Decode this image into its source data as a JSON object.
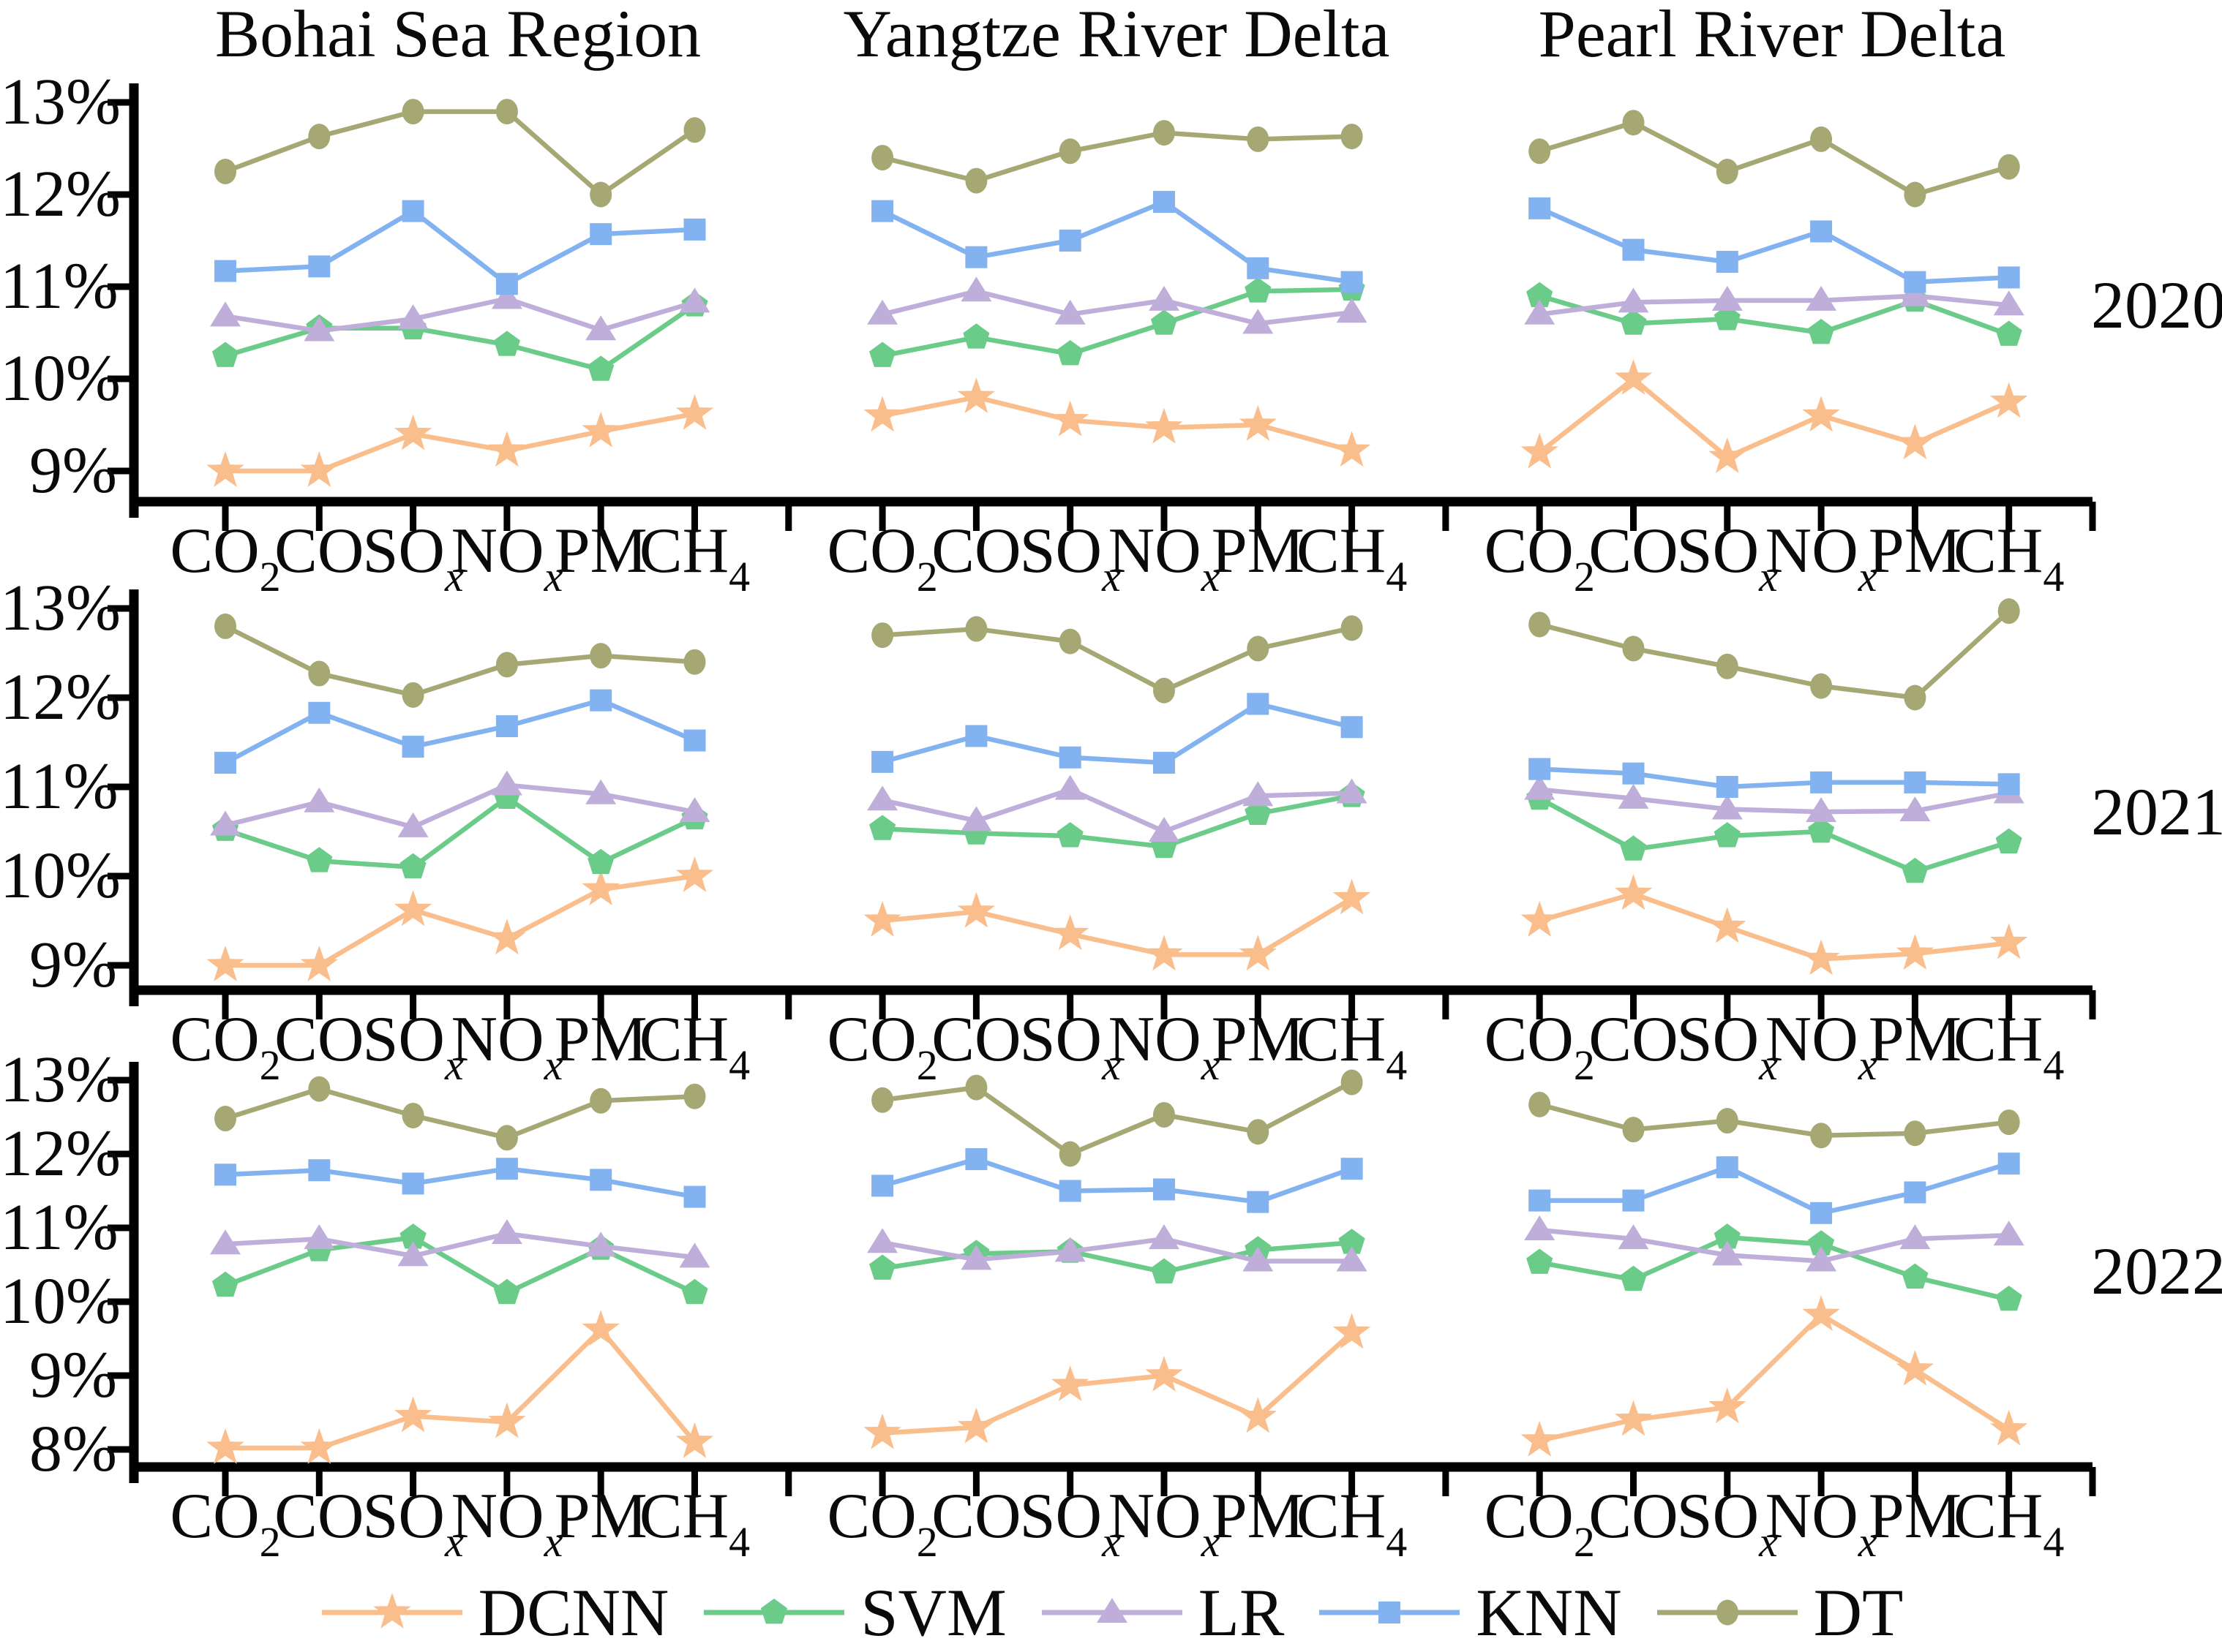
{
  "chart_data": {
    "type": "line",
    "grid": "off",
    "legend_position": "bottom",
    "y_unit": "%",
    "categories": [
      {
        "t": "CO",
        "s": "2"
      },
      {
        "t": "CO",
        "s": ""
      },
      {
        "t": "SO",
        "s": "x"
      },
      {
        "t": "NO",
        "s": "x"
      },
      {
        "t": "PM",
        "s": ""
      },
      {
        "t": "CH",
        "s": "4"
      }
    ],
    "series_styles": [
      {
        "name": "DCNN",
        "color": "#FABD8C",
        "marker": "star"
      },
      {
        "name": "SVM",
        "color": "#6BCB89",
        "marker": "pentagon"
      },
      {
        "name": "LR",
        "color": "#BFAEDA",
        "marker": "triangle"
      },
      {
        "name": "KNN",
        "color": "#82B3F0",
        "marker": "square"
      },
      {
        "name": "DT",
        "color": "#A6A873",
        "marker": "circle"
      }
    ],
    "rows": [
      {
        "year": "2020",
        "ylim": [
          9,
          13
        ],
        "y_ticks": [
          "13%",
          "12%",
          "11%",
          "10%",
          "9%"
        ],
        "panels": [
          {
            "region": "Bohai Sea Region",
            "series": [
              {
                "name": "DCNN",
                "values": [
                  9.0,
                  9.0,
                  9.4,
                  9.22,
                  9.43,
                  9.62
                ]
              },
              {
                "name": "SVM",
                "values": [
                  10.25,
                  10.55,
                  10.55,
                  10.37,
                  10.1,
                  10.8
                ]
              },
              {
                "name": "LR",
                "values": [
                  10.68,
                  10.52,
                  10.65,
                  10.87,
                  10.53,
                  10.83
                ]
              },
              {
                "name": "KNN",
                "values": [
                  11.17,
                  11.22,
                  11.82,
                  11.03,
                  11.57,
                  11.62
                ]
              },
              {
                "name": "DT",
                "values": [
                  12.25,
                  12.63,
                  12.9,
                  12.9,
                  12.0,
                  12.7
                ]
              }
            ]
          },
          {
            "region": "Yangtze River Delta",
            "series": [
              {
                "name": "DCNN",
                "values": [
                  9.6,
                  9.8,
                  9.55,
                  9.47,
                  9.5,
                  9.22
                ]
              },
              {
                "name": "SVM",
                "values": [
                  10.25,
                  10.45,
                  10.27,
                  10.6,
                  10.95,
                  10.97
                ]
              },
              {
                "name": "LR",
                "values": [
                  10.7,
                  10.95,
                  10.7,
                  10.85,
                  10.6,
                  10.72
                ]
              },
              {
                "name": "KNN",
                "values": [
                  11.82,
                  11.32,
                  11.5,
                  11.92,
                  11.2,
                  11.05
                ]
              },
              {
                "name": "DT",
                "values": [
                  12.4,
                  12.15,
                  12.47,
                  12.67,
                  12.6,
                  12.63
                ]
              }
            ]
          },
          {
            "region": "Pearl River Delta",
            "series": [
              {
                "name": "DCNN",
                "values": [
                  9.2,
                  10.0,
                  9.15,
                  9.6,
                  9.3,
                  9.75
                ]
              },
              {
                "name": "SVM",
                "values": [
                  10.9,
                  10.6,
                  10.65,
                  10.5,
                  10.85,
                  10.48
                ]
              },
              {
                "name": "LR",
                "values": [
                  10.7,
                  10.83,
                  10.85,
                  10.85,
                  10.9,
                  10.8
                ]
              },
              {
                "name": "KNN",
                "values": [
                  11.85,
                  11.4,
                  11.27,
                  11.6,
                  11.05,
                  11.1
                ]
              },
              {
                "name": "DT",
                "values": [
                  12.47,
                  12.78,
                  12.25,
                  12.6,
                  12.0,
                  12.3
                ]
              }
            ]
          }
        ]
      },
      {
        "year": "2021",
        "ylim": [
          9,
          13
        ],
        "y_ticks": [
          "13%",
          "12%",
          "11%",
          "10%",
          "9%"
        ],
        "panels": [
          {
            "region": "Bohai Sea Region",
            "series": [
              {
                "name": "DCNN",
                "values": [
                  9.0,
                  9.0,
                  9.62,
                  9.3,
                  9.85,
                  10.0
                ]
              },
              {
                "name": "SVM",
                "values": [
                  10.52,
                  10.17,
                  10.1,
                  10.88,
                  10.15,
                  10.65
                ]
              },
              {
                "name": "LR",
                "values": [
                  10.57,
                  10.83,
                  10.55,
                  11.02,
                  10.92,
                  10.72
                ]
              },
              {
                "name": "KNN",
                "values": [
                  11.27,
                  11.83,
                  11.45,
                  11.68,
                  11.97,
                  11.52
                ]
              },
              {
                "name": "DT",
                "values": [
                  12.8,
                  12.27,
                  12.03,
                  12.37,
                  12.47,
                  12.4
                ]
              }
            ]
          },
          {
            "region": "Yangtze River Delta",
            "series": [
              {
                "name": "DCNN",
                "values": [
                  9.5,
                  9.6,
                  9.35,
                  9.12,
                  9.12,
                  9.75
                ]
              },
              {
                "name": "SVM",
                "values": [
                  10.53,
                  10.48,
                  10.45,
                  10.33,
                  10.7,
                  10.9
                ]
              },
              {
                "name": "LR",
                "values": [
                  10.85,
                  10.62,
                  10.97,
                  10.5,
                  10.9,
                  10.93
                ]
              },
              {
                "name": "KNN",
                "values": [
                  11.28,
                  11.57,
                  11.33,
                  11.27,
                  11.93,
                  11.67
                ]
              },
              {
                "name": "DT",
                "values": [
                  12.7,
                  12.77,
                  12.63,
                  12.08,
                  12.55,
                  12.78
                ]
              }
            ]
          },
          {
            "region": "Pearl River Delta",
            "series": [
              {
                "name": "DCNN",
                "values": [
                  9.5,
                  9.8,
                  9.43,
                  9.07,
                  9.13,
                  9.25
                ]
              },
              {
                "name": "SVM",
                "values": [
                  10.87,
                  10.3,
                  10.45,
                  10.5,
                  10.05,
                  10.38
                ]
              },
              {
                "name": "LR",
                "values": [
                  10.97,
                  10.87,
                  10.75,
                  10.72,
                  10.73,
                  10.93
                ]
              },
              {
                "name": "KNN",
                "values": [
                  11.2,
                  11.15,
                  11.0,
                  11.05,
                  11.05,
                  11.03
                ]
              },
              {
                "name": "DT",
                "values": [
                  12.82,
                  12.55,
                  12.35,
                  12.13,
                  12.0,
                  12.97
                ]
              }
            ]
          }
        ]
      },
      {
        "year": "2022",
        "ylim": [
          8,
          13
        ],
        "y_ticks": [
          "13%",
          "12%",
          "11%",
          "10%",
          "9%",
          "8%"
        ],
        "panels": [
          {
            "region": "Bohai Sea Region",
            "series": [
              {
                "name": "DCNN",
                "values": [
                  8.02,
                  8.02,
                  8.45,
                  8.37,
                  9.62,
                  8.1
                ]
              },
              {
                "name": "SVM",
                "values": [
                  10.22,
                  10.7,
                  10.87,
                  10.12,
                  10.72,
                  10.12
                ]
              },
              {
                "name": "LR",
                "values": [
                  10.78,
                  10.85,
                  10.62,
                  10.92,
                  10.75,
                  10.6
                ]
              },
              {
                "name": "KNN",
                "values": [
                  11.72,
                  11.78,
                  11.6,
                  11.8,
                  11.65,
                  11.42
                ]
              },
              {
                "name": "DT",
                "values": [
                  12.48,
                  12.88,
                  12.52,
                  12.22,
                  12.72,
                  12.78
                ]
              }
            ]
          },
          {
            "region": "Yangtze River Delta",
            "series": [
              {
                "name": "DCNN",
                "values": [
                  8.22,
                  8.3,
                  8.87,
                  9.0,
                  8.44,
                  9.58
                ]
              },
              {
                "name": "SVM",
                "values": [
                  10.45,
                  10.65,
                  10.68,
                  10.4,
                  10.7,
                  10.8
                ]
              },
              {
                "name": "LR",
                "values": [
                  10.8,
                  10.57,
                  10.68,
                  10.85,
                  10.55,
                  10.55
                ]
              },
              {
                "name": "KNN",
                "values": [
                  11.57,
                  11.93,
                  11.5,
                  11.52,
                  11.35,
                  11.8
                ]
              },
              {
                "name": "DT",
                "values": [
                  12.73,
                  12.9,
                  12.0,
                  12.53,
                  12.3,
                  12.97
                ]
              }
            ]
          },
          {
            "region": "Pearl River Delta",
            "series": [
              {
                "name": "DCNN",
                "values": [
                  8.12,
                  8.4,
                  8.57,
                  9.82,
                  9.08,
                  8.27
                ]
              },
              {
                "name": "SVM",
                "values": [
                  10.53,
                  10.3,
                  10.87,
                  10.78,
                  10.33,
                  10.03
                ]
              },
              {
                "name": "LR",
                "values": [
                  10.97,
                  10.85,
                  10.63,
                  10.55,
                  10.85,
                  10.9
                ]
              },
              {
                "name": "KNN",
                "values": [
                  11.37,
                  11.37,
                  11.82,
                  11.2,
                  11.48,
                  11.87
                ]
              },
              {
                "name": "DT",
                "values": [
                  12.67,
                  12.33,
                  12.45,
                  12.25,
                  12.28,
                  12.43
                ]
              }
            ]
          }
        ]
      }
    ]
  }
}
